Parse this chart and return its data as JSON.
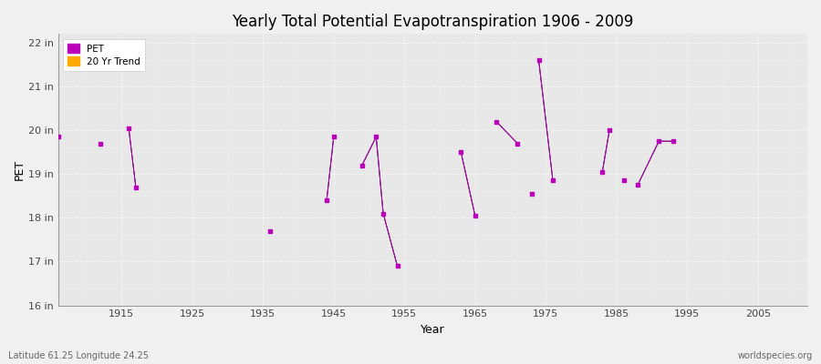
{
  "title": "Yearly Total Potential Evapotranspiration 1906 - 2009",
  "xlabel": "Year",
  "ylabel": "PET",
  "background_color": "#f0f0f0",
  "plot_bg_color": "#e8e8e8",
  "xlim": [
    1906,
    2012
  ],
  "ylim": [
    16,
    22.2
  ],
  "ytick_labels": [
    "16 in",
    "17 in",
    "18 in",
    "19 in",
    "20 in",
    "21 in",
    "22 in"
  ],
  "ytick_values": [
    16,
    17,
    18,
    19,
    20,
    21,
    22
  ],
  "xtick_values": [
    1915,
    1925,
    1935,
    1945,
    1955,
    1965,
    1975,
    1985,
    1995,
    2005
  ],
  "subtitle_left": "Latitude 61.25 Longitude 24.25",
  "subtitle_right": "worldspecies.org",
  "pet_color": "#bb00bb",
  "trend_color": "#ffaa00",
  "line_groups": [
    [
      [
        1916,
        20.05
      ],
      [
        1917,
        18.7
      ]
    ],
    [
      [
        1944,
        18.4
      ],
      [
        1945,
        19.85
      ]
    ],
    [
      [
        1949,
        19.2
      ],
      [
        1951,
        19.85
      ],
      [
        1952,
        18.1
      ],
      [
        1954,
        16.9
      ]
    ],
    [
      [
        1963,
        19.5
      ],
      [
        1965,
        18.05
      ]
    ],
    [
      [
        1968,
        20.2
      ],
      [
        1971,
        19.7
      ]
    ],
    [
      [
        1974,
        21.6
      ],
      [
        1976,
        18.85
      ]
    ],
    [
      [
        1983,
        19.05
      ],
      [
        1984,
        20.0
      ]
    ],
    [
      [
        1988,
        18.75
      ],
      [
        1991,
        19.75
      ],
      [
        1993,
        19.75
      ]
    ]
  ],
  "isolated_points": [
    [
      1906,
      19.85
    ],
    [
      1912,
      19.7
    ],
    [
      1936,
      17.7
    ],
    [
      1973,
      18.55
    ],
    [
      1986,
      18.85
    ]
  ],
  "all_points": [
    [
      1906,
      19.85
    ],
    [
      1912,
      19.7
    ],
    [
      1916,
      20.05
    ],
    [
      1917,
      18.7
    ],
    [
      1936,
      17.7
    ],
    [
      1944,
      18.4
    ],
    [
      1945,
      19.85
    ],
    [
      1949,
      19.2
    ],
    [
      1951,
      19.85
    ],
    [
      1952,
      18.1
    ],
    [
      1954,
      16.9
    ],
    [
      1963,
      19.5
    ],
    [
      1965,
      18.05
    ],
    [
      1968,
      20.2
    ],
    [
      1971,
      19.7
    ],
    [
      1973,
      18.55
    ],
    [
      1974,
      21.6
    ],
    [
      1976,
      18.85
    ],
    [
      1983,
      19.05
    ],
    [
      1984,
      20.0
    ],
    [
      1986,
      18.85
    ],
    [
      1988,
      18.75
    ],
    [
      1991,
      19.75
    ],
    [
      1993,
      19.75
    ]
  ]
}
